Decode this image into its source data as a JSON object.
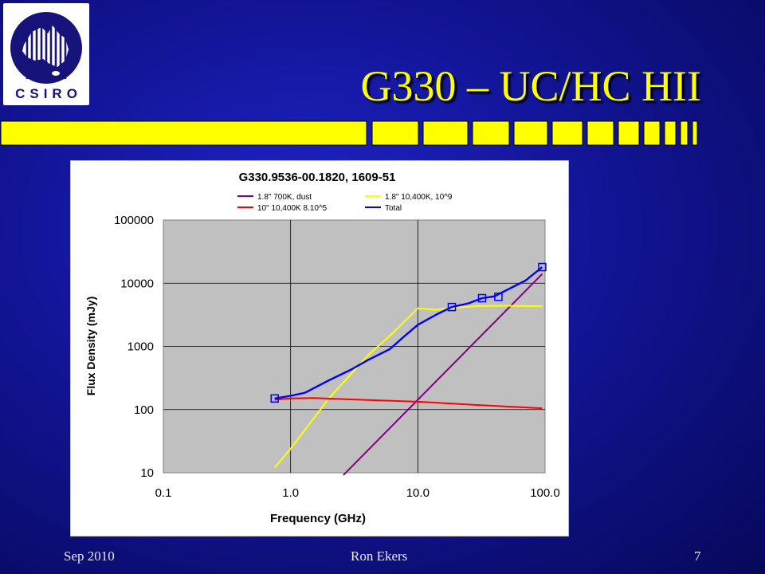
{
  "slide": {
    "title": "G330 – UC/HC HII",
    "logo_text": "CSIRO",
    "logo_icon": "csiro-australia-logo",
    "title_color": "#ffff00",
    "footer": {
      "date": "Sep 2010",
      "author": "Ron Ekers",
      "page": "7"
    }
  },
  "chart_data": {
    "type": "line",
    "title": "G330.9536-00.1820, 1609-51",
    "xlabel": "Frequency (GHz)",
    "ylabel": "Flux Density (mJy)",
    "xscale": "log",
    "yscale": "log",
    "xlim": [
      0.1,
      100
    ],
    "ylim": [
      10,
      100000
    ],
    "x_tick_labels": [
      "0.1",
      "1.0",
      "10.0",
      "100.0"
    ],
    "y_tick_labels": [
      "10",
      "100",
      "1000",
      "10000",
      "100000"
    ],
    "grid": true,
    "plot_background": "#c0c0c0",
    "legend_position": "top",
    "series": [
      {
        "name": "1.8\" 700K, dust",
        "color": "#800080",
        "x": [
          2.6,
          95
        ],
        "y": [
          9.2,
          14000
        ]
      },
      {
        "name": "1.8\" 10,400K, 10^9",
        "color": "#ffff00",
        "x": [
          0.75,
          1.0,
          2.0,
          4.0,
          6.5,
          10.0,
          14.0,
          20.0,
          30.0,
          50.0,
          95.0
        ],
        "y": [
          12,
          24,
          150,
          700,
          1700,
          4000,
          3800,
          4100,
          4350,
          4400,
          4300
        ]
      },
      {
        "name": "10\" 10,400K 8.10^5",
        "color": "#ff0000",
        "x": [
          0.75,
          1.0,
          1.5,
          3.0,
          10.0,
          30.0,
          95.0
        ],
        "y": [
          143,
          150,
          152,
          145,
          133,
          118,
          105
        ]
      },
      {
        "name": "Total",
        "color": "#0000ff",
        "x": [
          0.75,
          1.0,
          1.3,
          2.0,
          3.0,
          4.0,
          6.0,
          8.0,
          10.0,
          14.0,
          18.5,
          25.0,
          32.0,
          40.0,
          50.0,
          70.0,
          95.0
        ],
        "y": [
          150,
          165,
          185,
          290,
          430,
          600,
          900,
          1500,
          2200,
          3200,
          4200,
          4800,
          5800,
          6200,
          7800,
          11000,
          18000
        ]
      }
    ],
    "observations": {
      "name": "observed",
      "marker": "square",
      "color": "#0000ff",
      "x": [
        0.75,
        18.5,
        32.0,
        43.0,
        95.0
      ],
      "y": [
        150,
        4200,
        5800,
        6100,
        18000
      ]
    }
  }
}
